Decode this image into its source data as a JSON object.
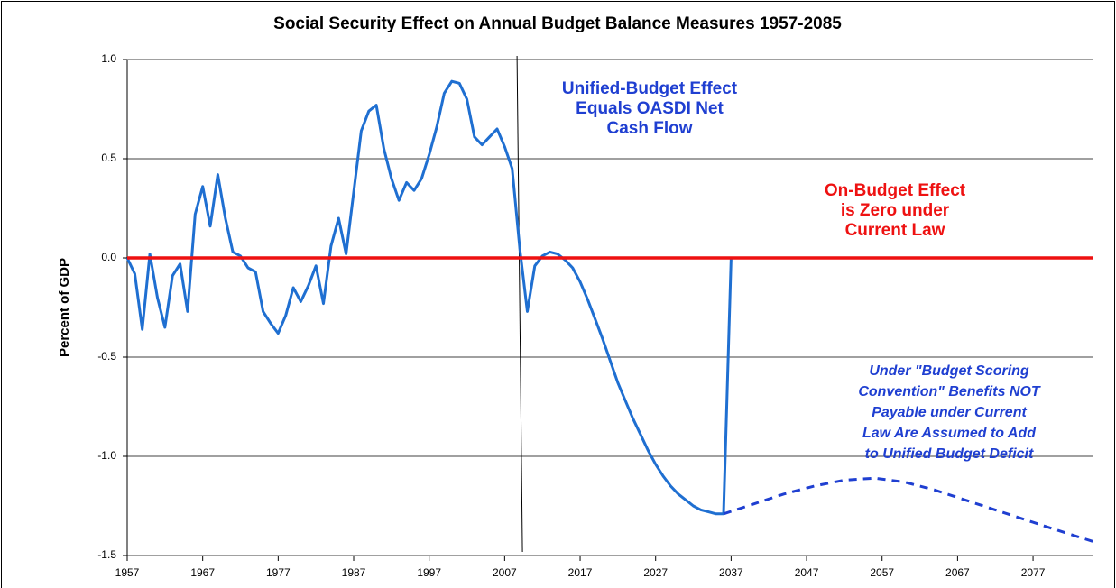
{
  "chart_data": {
    "type": "line",
    "title": "Social Security Effect on Annual Budget Balance Measures 1957-2085",
    "y_label": "Percent of GDP",
    "xlim": [
      1957,
      2085
    ],
    "ylim": [
      -1.5,
      1.0
    ],
    "xticks": [
      1957,
      1967,
      1977,
      1987,
      1997,
      2007,
      2017,
      2027,
      2037,
      2047,
      2057,
      2067,
      2077
    ],
    "yticks": [
      {
        "value": -1.5,
        "label": "-1.5"
      },
      {
        "value": -1.0,
        "label": "-1.0"
      },
      {
        "value": -0.5,
        "label": "-0.5"
      },
      {
        "value": 0,
        "label": "0.0"
      },
      {
        "value": 0.5,
        "label": "0.5"
      },
      {
        "value": 1.0,
        "label": "1.0"
      }
    ],
    "grid": true,
    "divider_x": 2009,
    "series": [
      {
        "name": "Unified-Budget Effect",
        "color": "#1f6fd1",
        "dash": false,
        "x": [
          1957,
          1958,
          1959,
          1960,
          1961,
          1962,
          1963,
          1964,
          1965,
          1966,
          1967,
          1968,
          1969,
          1970,
          1971,
          1972,
          1973,
          1974,
          1975,
          1976,
          1977,
          1978,
          1979,
          1980,
          1981,
          1982,
          1983,
          1984,
          1985,
          1986,
          1987,
          1988,
          1989,
          1990,
          1991,
          1992,
          1993,
          1994,
          1995,
          1996,
          1997,
          1998,
          1999,
          2000,
          2001,
          2002,
          2003,
          2004,
          2005,
          2006,
          2007,
          2008,
          2009,
          2010,
          2011,
          2012,
          2013,
          2014,
          2015,
          2016,
          2017,
          2018,
          2019,
          2020,
          2021,
          2022,
          2023,
          2024,
          2025,
          2026,
          2027,
          2028,
          2029,
          2030,
          2031,
          2032,
          2033,
          2034,
          2035,
          2036,
          2037
        ],
        "values": [
          0.0,
          -0.08,
          -0.36,
          0.02,
          -0.2,
          -0.35,
          -0.09,
          -0.03,
          -0.27,
          0.22,
          0.36,
          0.16,
          0.42,
          0.2,
          0.03,
          0.01,
          -0.05,
          -0.07,
          -0.27,
          -0.33,
          -0.38,
          -0.29,
          -0.15,
          -0.22,
          -0.14,
          -0.04,
          -0.23,
          0.06,
          0.2,
          0.02,
          0.33,
          0.64,
          0.74,
          0.77,
          0.55,
          0.4,
          0.29,
          0.38,
          0.34,
          0.4,
          0.52,
          0.66,
          0.83,
          0.89,
          0.88,
          0.8,
          0.61,
          0.57,
          0.61,
          0.65,
          0.56,
          0.45,
          0.05,
          -0.27,
          -0.04,
          0.01,
          0.03,
          0.02,
          -0.01,
          -0.05,
          -0.12,
          -0.21,
          -0.31,
          -0.41,
          -0.52,
          -0.63,
          -0.72,
          -0.81,
          -0.89,
          -0.97,
          -1.04,
          -1.1,
          -1.15,
          -1.19,
          -1.22,
          -1.25,
          -1.27,
          -1.28,
          -1.29,
          -1.29,
          0.0
        ]
      },
      {
        "name": "Budget Scoring Convention",
        "color": "#1f3fd1",
        "dash": true,
        "x": [
          2036,
          2040,
          2044,
          2048,
          2052,
          2056,
          2060,
          2064,
          2068,
          2072,
          2076,
          2080,
          2085
        ],
        "values": [
          -1.29,
          -1.24,
          -1.19,
          -1.15,
          -1.12,
          -1.11,
          -1.13,
          -1.17,
          -1.22,
          -1.27,
          -1.32,
          -1.37,
          -1.43
        ]
      },
      {
        "name": "On-Budget Effect",
        "color": "#ee1111",
        "dash": false,
        "x": [
          1957,
          2085
        ],
        "values": [
          0,
          0
        ]
      }
    ],
    "annotations": [
      {
        "lines": [
          "Unified-Budget Effect",
          "Equals OASDI Net",
          "Cash Flow"
        ],
        "color": "#1f3fd1",
        "italic": false
      },
      {
        "lines": [
          "On-Budget Effect",
          "is Zero under",
          "Current Law"
        ],
        "color": "#ee1111",
        "italic": false
      },
      {
        "lines": [
          "Under \"Budget Scoring",
          "Convention\" Benefits NOT",
          "Payable under Current",
          "Law Are Assumed to Add",
          "to Unified Budget Deficit"
        ],
        "color": "#1f3fd1",
        "italic": true
      }
    ]
  }
}
